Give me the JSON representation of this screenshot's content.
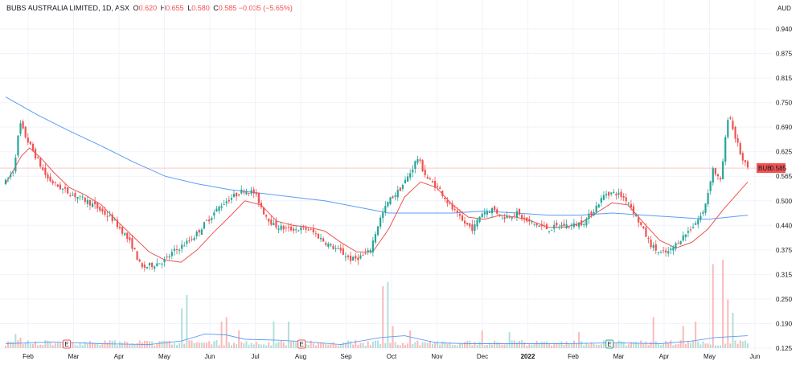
{
  "header": {
    "symbol_line": "BUBS AUSTRALIA LIMITED, 1D, ASX",
    "o_label": "O",
    "o_value": "0.620",
    "h_label": "H",
    "h_value": "0.655",
    "l_label": "L",
    "l_value": "0.580",
    "c_label": "C",
    "c_value": "0.585",
    "change": "−0.035 (−5.65%)"
  },
  "currency": "AUD",
  "price_tag": {
    "ticker": "BUB",
    "value": "0.585"
  },
  "colors": {
    "up": "#26a69a",
    "down": "#ef5350",
    "ma_fast": "#ef5350",
    "ma_slow": "#5b9cf6",
    "volume_up": "#b2dfdb",
    "volume_down": "#f8bbb9",
    "grid": "#f0f3fa",
    "event_box": "#ef5350",
    "event_box_earnings": "#26a69a"
  },
  "chart_data": {
    "type": "candlestick",
    "title": "BUBS AUSTRALIA LIMITED, 1D, ASX",
    "y_ticks": [
      "0.940",
      "0.875",
      "0.815",
      "0.750",
      "0.690",
      "0.625",
      "0.565",
      "0.500",
      "0.440",
      "0.375",
      "0.315",
      "0.250",
      "0.190",
      "0.125"
    ],
    "x_ticks": [
      "Feb",
      "Mar",
      "Apr",
      "May",
      "Jun",
      "Jul",
      "Aug",
      "Sep",
      "Oct",
      "Nov",
      "Dec",
      "2022",
      "Feb",
      "Mar",
      "Apr",
      "May",
      "Jun"
    ],
    "bold_x_tick": "2022",
    "ylim": [
      0.125,
      0.97
    ],
    "grid": true,
    "events": [
      {
        "label": "E",
        "after_tick": 0,
        "t": 0.85,
        "kind": "dividend"
      },
      {
        "label": "E",
        "after_tick": 6,
        "t": 0.02,
        "kind": "dividend"
      },
      {
        "label": "E",
        "after_tick": 12,
        "t": 0.8,
        "kind": "earnings"
      }
    ],
    "price_points": [
      [
        0,
        0.55
      ],
      [
        0.5,
        0.58
      ],
      [
        0.9,
        0.7
      ],
      [
        1.3,
        0.66
      ],
      [
        1.8,
        0.62
      ],
      [
        2.2,
        0.59
      ],
      [
        2.6,
        0.56
      ],
      [
        3.2,
        0.54
      ],
      [
        4.0,
        0.52
      ],
      [
        4.8,
        0.505
      ],
      [
        5.3,
        0.495
      ],
      [
        6.0,
        0.475
      ],
      [
        6.7,
        0.455
      ],
      [
        7.4,
        0.42
      ],
      [
        8.0,
        0.38
      ],
      [
        8.5,
        0.33
      ],
      [
        9.3,
        0.34
      ],
      [
        10.0,
        0.35
      ],
      [
        10.5,
        0.37
      ],
      [
        11.2,
        0.39
      ],
      [
        11.8,
        0.41
      ],
      [
        12.6,
        0.45
      ],
      [
        13.5,
        0.49
      ],
      [
        14.2,
        0.51
      ],
      [
        15.0,
        0.53
      ],
      [
        15.6,
        0.52
      ],
      [
        16.2,
        0.47
      ],
      [
        16.8,
        0.44
      ],
      [
        17.6,
        0.43
      ],
      [
        18.3,
        0.43
      ],
      [
        19.0,
        0.43
      ],
      [
        19.6,
        0.41
      ],
      [
        20.2,
        0.39
      ],
      [
        21.0,
        0.37
      ],
      [
        21.7,
        0.35
      ],
      [
        22.3,
        0.36
      ],
      [
        22.8,
        0.37
      ],
      [
        23.4,
        0.45
      ],
      [
        24.0,
        0.5
      ],
      [
        24.7,
        0.53
      ],
      [
        25.3,
        0.57
      ],
      [
        25.8,
        0.61
      ],
      [
        26.4,
        0.56
      ],
      [
        27.2,
        0.53
      ],
      [
        27.8,
        0.49
      ],
      [
        28.6,
        0.45
      ],
      [
        29.3,
        0.43
      ],
      [
        29.8,
        0.47
      ],
      [
        30.5,
        0.48
      ],
      [
        31.2,
        0.46
      ],
      [
        32.0,
        0.47
      ],
      [
        32.6,
        0.45
      ],
      [
        33.4,
        0.44
      ],
      [
        34.0,
        0.43
      ],
      [
        34.8,
        0.44
      ],
      [
        35.6,
        0.44
      ],
      [
        36.3,
        0.45
      ],
      [
        36.9,
        0.48
      ],
      [
        37.6,
        0.52
      ],
      [
        38.3,
        0.52
      ],
      [
        39.0,
        0.5
      ],
      [
        39.8,
        0.44
      ],
      [
        40.4,
        0.39
      ],
      [
        41.0,
        0.365
      ],
      [
        41.6,
        0.37
      ],
      [
        42.2,
        0.4
      ],
      [
        42.9,
        0.43
      ],
      [
        43.7,
        0.47
      ],
      [
        44.0,
        0.52
      ],
      [
        44.3,
        0.585
      ],
      [
        44.8,
        0.55
      ],
      [
        45.3,
        0.73
      ],
      [
        45.6,
        0.68
      ],
      [
        45.9,
        0.64
      ],
      [
        46.2,
        0.6
      ],
      [
        46.5,
        0.585
      ]
    ],
    "ma_fast_points": [
      [
        0,
        0.545
      ],
      [
        1.0,
        0.615
      ],
      [
        1.5,
        0.635
      ],
      [
        2.2,
        0.61
      ],
      [
        3.0,
        0.575
      ],
      [
        4.0,
        0.535
      ],
      [
        5.0,
        0.515
      ],
      [
        6.0,
        0.49
      ],
      [
        7.0,
        0.45
      ],
      [
        8.0,
        0.41
      ],
      [
        9.0,
        0.37
      ],
      [
        10.0,
        0.35
      ],
      [
        11.0,
        0.345
      ],
      [
        12.0,
        0.375
      ],
      [
        13.0,
        0.42
      ],
      [
        14.0,
        0.46
      ],
      [
        15.0,
        0.5
      ],
      [
        16.0,
        0.49
      ],
      [
        17.0,
        0.45
      ],
      [
        18.0,
        0.44
      ],
      [
        19.0,
        0.435
      ],
      [
        20.0,
        0.425
      ],
      [
        21.0,
        0.395
      ],
      [
        22.0,
        0.37
      ],
      [
        23.0,
        0.37
      ],
      [
        24.0,
        0.43
      ],
      [
        25.0,
        0.51
      ],
      [
        26.0,
        0.55
      ],
      [
        27.0,
        0.535
      ],
      [
        28.0,
        0.49
      ],
      [
        29.0,
        0.46
      ],
      [
        30.0,
        0.455
      ],
      [
        31.0,
        0.465
      ],
      [
        32.0,
        0.46
      ],
      [
        33.0,
        0.45
      ],
      [
        34.0,
        0.435
      ],
      [
        35.0,
        0.435
      ],
      [
        36.0,
        0.445
      ],
      [
        37.0,
        0.47
      ],
      [
        38.0,
        0.495
      ],
      [
        39.0,
        0.49
      ],
      [
        40.0,
        0.445
      ],
      [
        41.0,
        0.4
      ],
      [
        42.0,
        0.38
      ],
      [
        43.0,
        0.395
      ],
      [
        44.0,
        0.43
      ],
      [
        45.0,
        0.48
      ],
      [
        46.5,
        0.55
      ]
    ],
    "ma_slow_points": [
      [
        0,
        0.765
      ],
      [
        2.0,
        0.72
      ],
      [
        4.0,
        0.68
      ],
      [
        6.0,
        0.64
      ],
      [
        8.0,
        0.6
      ],
      [
        10.0,
        0.565
      ],
      [
        12.0,
        0.545
      ],
      [
        14.0,
        0.53
      ],
      [
        16.0,
        0.52
      ],
      [
        18.0,
        0.51
      ],
      [
        20.0,
        0.5
      ],
      [
        22.0,
        0.485
      ],
      [
        24.0,
        0.47
      ],
      [
        26.0,
        0.47
      ],
      [
        28.0,
        0.47
      ],
      [
        30.0,
        0.475
      ],
      [
        32.0,
        0.47
      ],
      [
        34.0,
        0.465
      ],
      [
        36.0,
        0.465
      ],
      [
        38.0,
        0.47
      ],
      [
        40.0,
        0.465
      ],
      [
        42.0,
        0.46
      ],
      [
        44.0,
        0.455
      ],
      [
        46.5,
        0.465
      ]
    ],
    "volume_spikes": [
      [
        0.6,
        0.16
      ],
      [
        1.0,
        0.12
      ],
      [
        9.7,
        0.08
      ],
      [
        11.1,
        0.45
      ],
      [
        11.4,
        0.6
      ],
      [
        13.5,
        0.3
      ],
      [
        13.9,
        0.35
      ],
      [
        14.6,
        0.2
      ],
      [
        16.8,
        0.3
      ],
      [
        17.7,
        0.3
      ],
      [
        23.6,
        0.7
      ],
      [
        23.9,
        0.75
      ],
      [
        24.3,
        0.25
      ],
      [
        25.3,
        0.2
      ],
      [
        29.8,
        0.2
      ],
      [
        31.6,
        0.18
      ],
      [
        35.9,
        0.18
      ],
      [
        40.6,
        0.35
      ],
      [
        42.5,
        0.25
      ],
      [
        43.2,
        0.3
      ],
      [
        44.3,
        0.95
      ],
      [
        44.9,
        1.0
      ],
      [
        45.3,
        0.55
      ],
      [
        45.6,
        0.4
      ]
    ],
    "volume_ma_points": [
      [
        0,
        0.05
      ],
      [
        3.0,
        0.07
      ],
      [
        6.0,
        0.05
      ],
      [
        9.0,
        0.04
      ],
      [
        11.0,
        0.08
      ],
      [
        12.5,
        0.16
      ],
      [
        13.8,
        0.15
      ],
      [
        15.0,
        0.1
      ],
      [
        17.0,
        0.09
      ],
      [
        19.0,
        0.07
      ],
      [
        21.0,
        0.04
      ],
      [
        23.5,
        0.12
      ],
      [
        25.0,
        0.14
      ],
      [
        27.0,
        0.06
      ],
      [
        29.0,
        0.05
      ],
      [
        32.0,
        0.05
      ],
      [
        35.0,
        0.05
      ],
      [
        38.0,
        0.06
      ],
      [
        41.0,
        0.05
      ],
      [
        43.0,
        0.08
      ],
      [
        44.5,
        0.12
      ],
      [
        46.5,
        0.14
      ]
    ]
  }
}
